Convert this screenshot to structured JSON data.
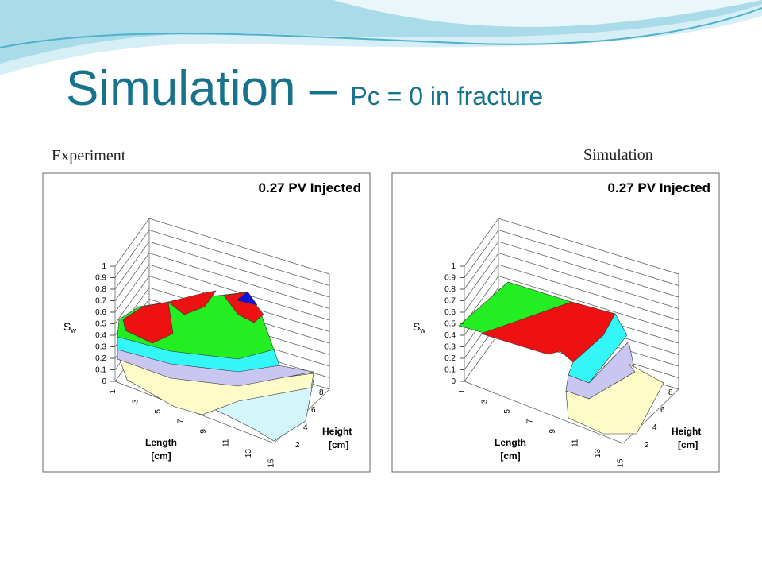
{
  "header": {
    "title": "Simulation – ",
    "subtitle": "Pc = 0 in fracture"
  },
  "panels": [
    {
      "caption": "Experiment",
      "title": "0.27 PV Injected",
      "z_label": "S",
      "z_label_sub": "w",
      "z_ticks": [
        "0",
        "0.1",
        "0.2",
        "0.3",
        "0.4",
        "0.5",
        "0.6",
        "0.7",
        "0.8",
        "0.9",
        "1"
      ],
      "length_ticks": [
        "1",
        "3",
        "5",
        "7",
        "9",
        "11",
        "13",
        "15"
      ],
      "length_label": "Length",
      "length_unit": "[cm]",
      "height_ticks": [
        "2",
        "4",
        "6",
        "8"
      ],
      "height_label": "Height",
      "height_unit": "[cm]"
    },
    {
      "caption": "Simulation",
      "title": "0.27 PV Injected",
      "z_label": "S",
      "z_label_sub": "w",
      "z_ticks": [
        "0",
        "0.1",
        "0.2",
        "0.3",
        "0.4",
        "0.5",
        "0.6",
        "0.7",
        "0.8",
        "0.9",
        "1"
      ],
      "length_ticks": [
        "1",
        "3",
        "5",
        "7",
        "9",
        "11",
        "13",
        "15"
      ],
      "length_label": "Length",
      "length_unit": "[cm]",
      "height_ticks": [
        "2",
        "4",
        "6",
        "8"
      ],
      "height_label": "Height",
      "height_unit": "[cm]"
    }
  ]
}
